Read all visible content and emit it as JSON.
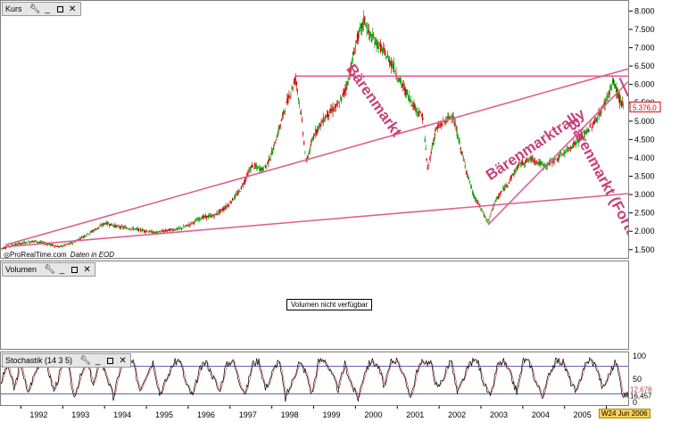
{
  "panels": {
    "price": {
      "title": "Kurs"
    },
    "volume": {
      "title": "Volumen",
      "message": "Volumen nicht verfügbar"
    },
    "stochastic": {
      "title": "Stochastik (14 3 5)"
    }
  },
  "watermark": {
    "source": "ProRealTime.com",
    "data_note": "Daten in EOD"
  },
  "last_price_label": "5.376,0",
  "stoch_value_label_1": "12,678",
  "stoch_value_label_2": "16,457",
  "date_badge": "W24 Jun 2006",
  "colors": {
    "candle_up": "#00a000",
    "candle_down": "#d00000",
    "trendline": "#e06090",
    "annotation": "#c8407a",
    "stoch_k": "#000000",
    "stoch_d": "#c04040",
    "stoch_bands": "#3030a0"
  },
  "chart_data": [
    {
      "type": "candlestick",
      "panel": "price",
      "x_range": [
        1991.5,
        2006.5
      ],
      "ylim": [
        1300,
        8300
      ],
      "yticks": [
        "8.000",
        "7.500",
        "7.000",
        "6.500",
        "6.000",
        "5.500",
        "5.000",
        "4.500",
        "4.000",
        "3.500",
        "3.000",
        "2.500",
        "2.000",
        "1.500"
      ],
      "ytick_values": [
        8000,
        7500,
        7000,
        6500,
        6000,
        5500,
        5000,
        4500,
        4000,
        3500,
        3000,
        2500,
        2000,
        1500
      ],
      "xticks": [
        "1992",
        "1993",
        "1994",
        "1995",
        "1996",
        "1997",
        "1998",
        "1999",
        "2000",
        "2001",
        "2002",
        "2003",
        "2004",
        "2005",
        "2006"
      ],
      "xtick_values": [
        1992,
        1993,
        1994,
        1995,
        1996,
        1997,
        1998,
        1999,
        2000,
        2001,
        2002,
        2003,
        2004,
        2005,
        2006
      ],
      "series_close": [
        [
          1991.5,
          1550
        ],
        [
          1991.8,
          1650
        ],
        [
          1992.0,
          1700
        ],
        [
          1992.3,
          1760
        ],
        [
          1992.6,
          1680
        ],
        [
          1992.9,
          1600
        ],
        [
          1993.2,
          1700
        ],
        [
          1993.5,
          1900
        ],
        [
          1993.8,
          2100
        ],
        [
          1994.0,
          2250
        ],
        [
          1994.3,
          2150
        ],
        [
          1994.6,
          2100
        ],
        [
          1994.9,
          2050
        ],
        [
          1995.2,
          1980
        ],
        [
          1995.5,
          2050
        ],
        [
          1995.8,
          2100
        ],
        [
          1996.0,
          2200
        ],
        [
          1996.3,
          2400
        ],
        [
          1996.6,
          2450
        ],
        [
          1996.9,
          2700
        ],
        [
          1997.2,
          3100
        ],
        [
          1997.5,
          3800
        ],
        [
          1997.8,
          3700
        ],
        [
          1998.0,
          4200
        ],
        [
          1998.3,
          5400
        ],
        [
          1998.55,
          6200
        ],
        [
          1998.7,
          5000
        ],
        [
          1998.8,
          3900
        ],
        [
          1999.0,
          4700
        ],
        [
          1999.3,
          5200
        ],
        [
          1999.6,
          5500
        ],
        [
          1999.8,
          6100
        ],
        [
          2000.0,
          7200
        ],
        [
          2000.2,
          7800
        ],
        [
          2000.3,
          7400
        ],
        [
          2000.6,
          7000
        ],
        [
          2000.9,
          6500
        ],
        [
          2001.0,
          6200
        ],
        [
          2001.2,
          5800
        ],
        [
          2001.4,
          5400
        ],
        [
          2001.6,
          5100
        ],
        [
          2001.7,
          3700
        ],
        [
          2001.9,
          4800
        ],
        [
          2002.1,
          5000
        ],
        [
          2002.3,
          5200
        ],
        [
          2002.45,
          4500
        ],
        [
          2002.6,
          3800
        ],
        [
          2002.8,
          3000
        ],
        [
          2003.0,
          2600
        ],
        [
          2003.15,
          2250
        ],
        [
          2003.3,
          2800
        ],
        [
          2003.6,
          3300
        ],
        [
          2003.9,
          3850
        ],
        [
          2004.2,
          4000
        ],
        [
          2004.5,
          3800
        ],
        [
          2004.8,
          4000
        ],
        [
          2005.1,
          4300
        ],
        [
          2005.4,
          4600
        ],
        [
          2005.7,
          5000
        ],
        [
          2005.9,
          5400
        ],
        [
          2006.15,
          6100
        ],
        [
          2006.3,
          5600
        ],
        [
          2006.4,
          5376
        ]
      ],
      "annotations": [
        "Bärenmarkt",
        "Bärenmarktrally",
        "Bärenmarkt (Forts.)"
      ]
    },
    {
      "type": "line",
      "panel": "stochastic",
      "ylim": [
        0,
        100
      ],
      "yticks": [
        "100",
        "50",
        "0"
      ],
      "ytick_values": [
        100,
        50,
        0
      ],
      "bands": [
        80,
        20
      ],
      "series": [
        {
          "values": [
            45,
            85,
            30,
            90,
            20,
            60,
            95,
            80,
            25,
            70,
            90,
            15,
            55,
            88,
            40,
            92,
            60,
            10,
            75,
            95,
            85,
            30,
            65,
            90,
            20,
            50,
            85,
            95,
            40,
            15,
            70,
            90,
            60,
            25,
            80,
            95,
            50,
            20,
            85,
            92,
            30,
            65,
            95,
            10,
            45,
            88,
            70,
            20,
            90,
            95,
            60,
            30,
            85,
            40,
            10,
            70,
            92,
            80,
            35,
            90,
            95,
            50,
            15,
            75,
            92,
            85,
            30,
            60,
            95,
            20,
            55,
            88,
            93,
            45,
            10,
            80,
            90,
            60,
            25,
            95,
            85,
            40,
            15,
            70,
            92,
            88,
            50,
            20,
            75,
            95,
            80,
            30,
            65,
            90,
            20,
            15
          ]
        }
      ]
    }
  ]
}
